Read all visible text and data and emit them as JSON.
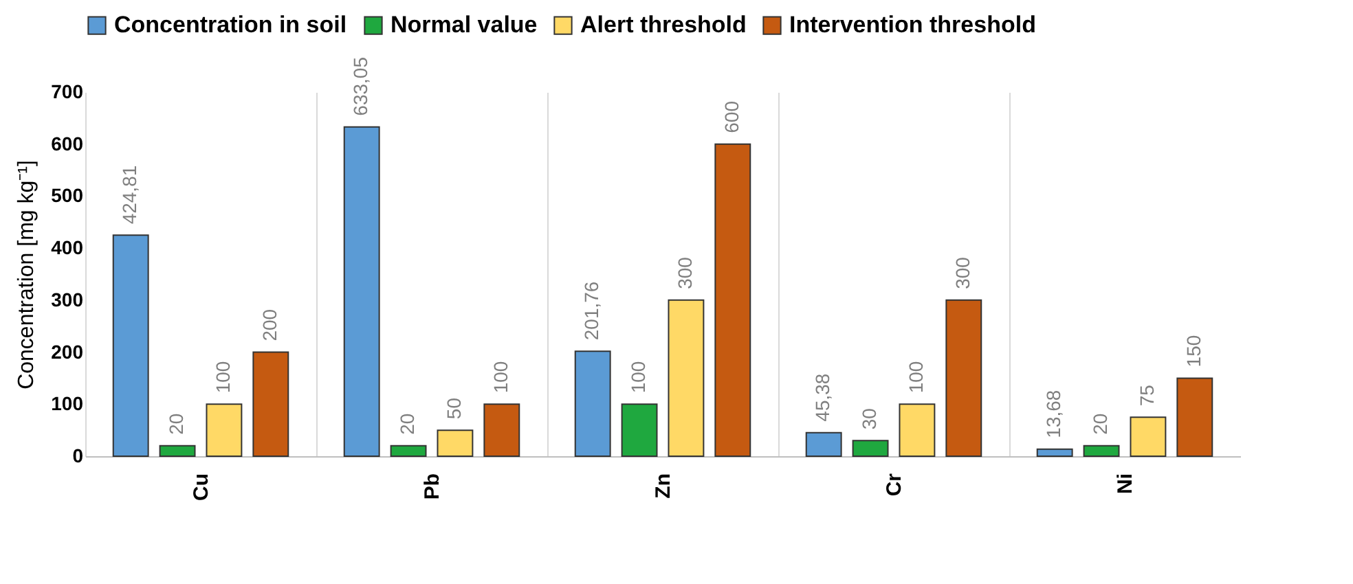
{
  "chart_data": {
    "type": "bar",
    "ylabel": "Concentration [mg kg⁻¹]",
    "categories": [
      "Cu",
      "Pb",
      "Zn",
      "Cr",
      "Ni"
    ],
    "series": [
      {
        "name": "Concentration in soil",
        "color": "#5b9bd5",
        "values": [
          424.81,
          633.05,
          201.76,
          45.38,
          13.68
        ],
        "value_labels": [
          "424,81",
          "633,05",
          "201,76",
          "45,38",
          "13,68"
        ]
      },
      {
        "name": "Normal value",
        "color": "#1fa83f",
        "values": [
          20,
          20,
          100,
          30,
          20
        ],
        "value_labels": [
          "20",
          "20",
          "100",
          "30",
          "20"
        ]
      },
      {
        "name": "Alert threshold",
        "color": "#ffd966",
        "values": [
          100,
          50,
          300,
          100,
          75
        ],
        "value_labels": [
          "100",
          "50",
          "300",
          "100",
          "75"
        ]
      },
      {
        "name": "Intervention threshold",
        "color": "#c55a11",
        "values": [
          200,
          100,
          600,
          300,
          150
        ],
        "value_labels": [
          "200",
          "100",
          "600",
          "300",
          "150"
        ]
      }
    ],
    "ylim": [
      0,
      700
    ],
    "yticks": [
      0,
      100,
      200,
      300,
      400,
      500,
      600,
      700
    ],
    "grid": "x",
    "legend": "top"
  }
}
